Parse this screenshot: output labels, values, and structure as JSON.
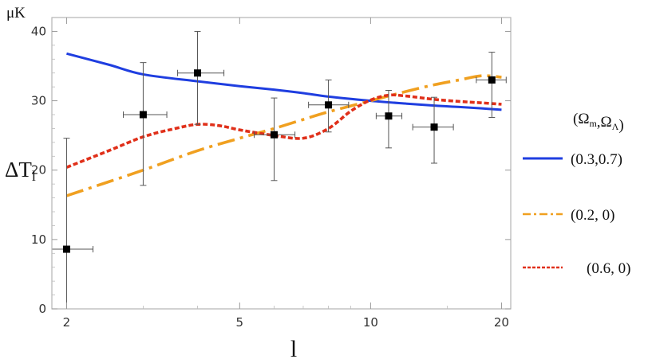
{
  "chart_data": {
    "type": "line",
    "title": "",
    "xlabel": "l",
    "ylabel": "ΔT_l",
    "yunit": "μK",
    "xscale": "log",
    "xlim": [
      1.85,
      21
    ],
    "ylim": [
      0,
      42
    ],
    "xticks": [
      2,
      5,
      10,
      20
    ],
    "yticks": [
      0,
      10,
      20,
      30,
      40
    ],
    "grid": false,
    "legend": {
      "position": "right",
      "title": "(Ω_m,Ω_Λ)"
    },
    "series": [
      {
        "name": "(0.3,0.7)",
        "style": "solid",
        "color": "#1f3ee0",
        "x": [
          2,
          2.5,
          3,
          4,
          5,
          6,
          7,
          8,
          10,
          12,
          14,
          16,
          18,
          20
        ],
        "y": [
          36.8,
          35.2,
          33.8,
          32.8,
          32.1,
          31.6,
          31.1,
          30.6,
          30.0,
          29.6,
          29.3,
          29.1,
          28.9,
          28.7
        ]
      },
      {
        "name": "(0.2, 0)",
        "style": "dashdot",
        "color": "#f0a020",
        "x": [
          2,
          3,
          4,
          5,
          6,
          7,
          8,
          10,
          12,
          14,
          16,
          18,
          20
        ],
        "y": [
          16.3,
          20.0,
          22.8,
          24.6,
          26.0,
          27.3,
          28.4,
          30.0,
          31.3,
          32.3,
          33.0,
          33.6,
          33.4
        ]
      },
      {
        "name": "(0.6, 0)",
        "style": "dotted",
        "color": "#e0301a",
        "x": [
          2,
          2.5,
          3,
          3.5,
          4,
          4.5,
          5,
          6,
          7,
          8,
          9,
          10,
          11,
          12,
          14,
          16,
          18,
          20
        ],
        "y": [
          20.4,
          22.8,
          24.8,
          25.9,
          26.6,
          26.4,
          25.8,
          25.0,
          24.6,
          26.0,
          28.5,
          30.1,
          30.8,
          30.7,
          30.2,
          29.9,
          29.7,
          29.5
        ]
      }
    ],
    "data_points": {
      "marker": "square",
      "color": "#000000",
      "points": [
        {
          "x": 2,
          "y": 8.6,
          "y_low": 0,
          "y_high": 24.6,
          "x_low": 1.85,
          "x_high": 2.3
        },
        {
          "x": 3,
          "y": 28.0,
          "y_low": 17.8,
          "y_high": 35.5,
          "x_low": 2.7,
          "x_high": 3.4
        },
        {
          "x": 4,
          "y": 34.0,
          "y_low": 26.6,
          "y_high": 40.0,
          "x_low": 3.6,
          "x_high": 4.6
        },
        {
          "x": 6,
          "y": 25.1,
          "y_low": 18.5,
          "y_high": 30.4,
          "x_low": 5.4,
          "x_high": 6.7
        },
        {
          "x": 8,
          "y": 29.4,
          "y_low": 25.5,
          "y_high": 33.0,
          "x_low": 7.2,
          "x_high": 8.9
        },
        {
          "x": 11,
          "y": 27.8,
          "y_low": 23.2,
          "y_high": 31.5,
          "x_low": 10.3,
          "x_high": 11.8
        },
        {
          "x": 14,
          "y": 26.2,
          "y_low": 21.0,
          "y_high": 30.5,
          "x_low": 12.5,
          "x_high": 15.5
        },
        {
          "x": 19,
          "y": 33.0,
          "y_low": 27.6,
          "y_high": 37.0,
          "x_low": 17.5,
          "x_high": 20.5
        }
      ]
    }
  }
}
